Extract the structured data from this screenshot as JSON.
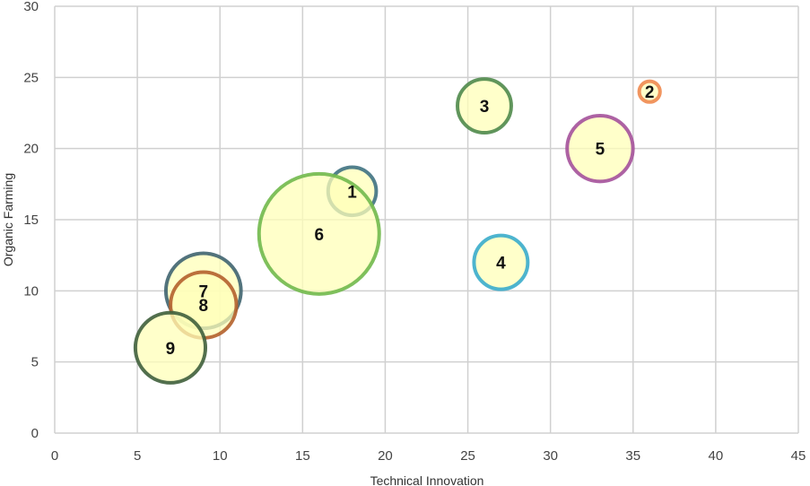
{
  "chart_data": {
    "type": "bubble",
    "title": "",
    "xlabel": "Technical Innovation",
    "ylabel": "Organic Farming",
    "xlim": [
      0,
      45
    ],
    "ylim": [
      0,
      30
    ],
    "xticks": [
      0,
      5,
      10,
      15,
      20,
      25,
      30,
      35,
      40,
      45
    ],
    "yticks": [
      0,
      5,
      10,
      15,
      20,
      25,
      30
    ],
    "grid": true,
    "bubble_fill": "#ffffb8",
    "points": [
      {
        "label": "1",
        "x": 18,
        "y": 17,
        "size": 16,
        "color": "#3f7282"
      },
      {
        "label": "2",
        "x": 36,
        "y": 24,
        "size": 3,
        "color": "#f08a4f"
      },
      {
        "label": "3",
        "x": 26,
        "y": 23,
        "size": 20,
        "color": "#4f8a4b"
      },
      {
        "label": "4",
        "x": 27,
        "y": 12,
        "size": 20,
        "color": "#3aaccb"
      },
      {
        "label": "5",
        "x": 33,
        "y": 20,
        "size": 30,
        "color": "#a4519b"
      },
      {
        "label": "6",
        "x": 16,
        "y": 14,
        "size": 100,
        "color": "#71b94c"
      },
      {
        "label": "7",
        "x": 9,
        "y": 10,
        "size": 39,
        "color": "#3f6470"
      },
      {
        "label": "8",
        "x": 9,
        "y": 9,
        "size": 30,
        "color": "#b4612c"
      },
      {
        "label": "9",
        "x": 7,
        "y": 6,
        "size": 34,
        "color": "#3f5f3c"
      }
    ]
  }
}
